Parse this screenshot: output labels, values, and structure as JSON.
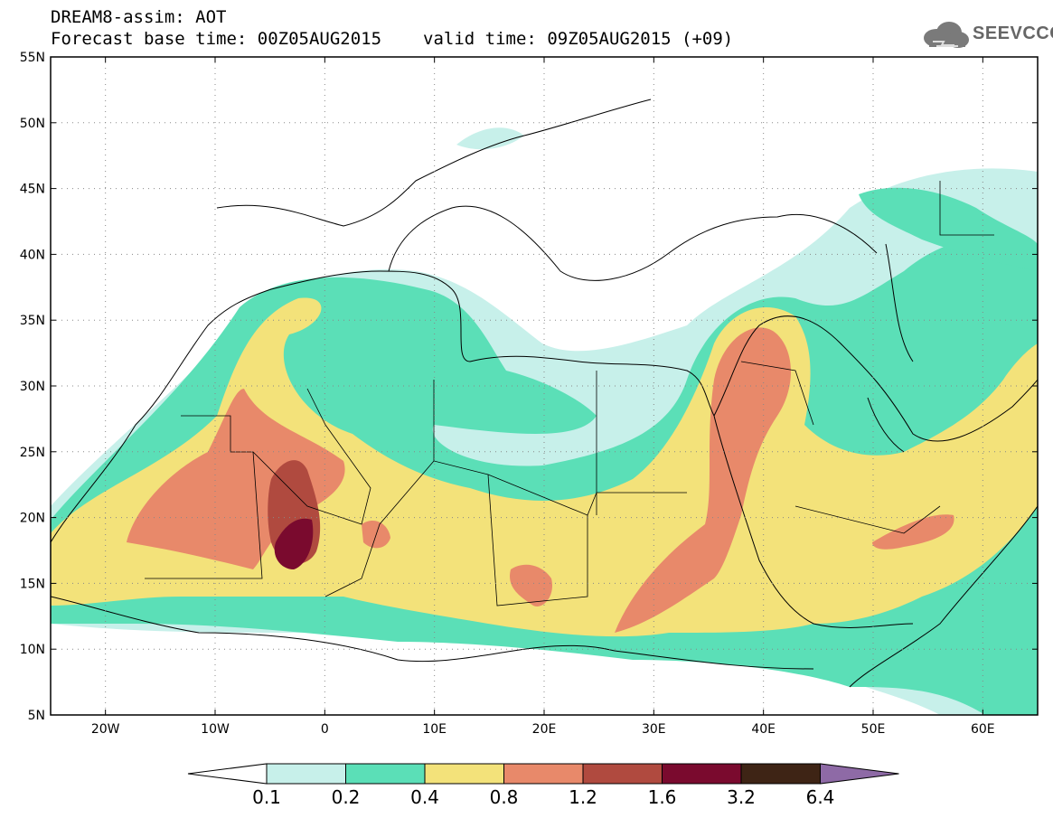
{
  "title": {
    "line1": "DREAM8-assim: AOT",
    "base_time": "Forecast base time: 00Z05AUG2015",
    "valid_time": "valid time: 09Z05AUG2015 (+09)"
  },
  "logo": {
    "text": "SEEVCCC",
    "icon": "cloud-icon"
  },
  "map": {
    "variable": "AOT",
    "lon_range": [
      -25,
      65
    ],
    "lat_range": [
      5,
      55
    ],
    "lat_ticks": [
      "55N",
      "50N",
      "45N",
      "40N",
      "35N",
      "30N",
      "25N",
      "20N",
      "15N",
      "10N",
      "5N"
    ],
    "lon_ticks": [
      "20W",
      "10W",
      "0",
      "10E",
      "20E",
      "30E",
      "40E",
      "50E",
      "60E"
    ],
    "gridlines": "dotted"
  },
  "colorbar": {
    "labels": [
      "0.1",
      "0.2",
      "0.4",
      "0.8",
      "1.2",
      "1.6",
      "3.2",
      "6.4"
    ],
    "colors": [
      "#c7f0ea",
      "#5bdfb7",
      "#f3e27a",
      "#e8896a",
      "#b04a3f",
      "#7a0a2e",
      "#3e2415",
      "#8e6aa6"
    ],
    "under_color": "#ffffff"
  }
}
